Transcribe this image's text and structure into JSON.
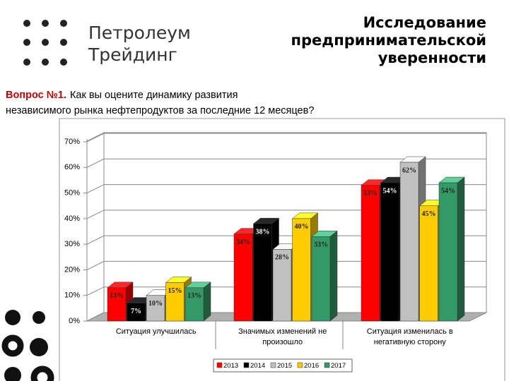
{
  "header": {
    "logo": [
      "Петролеум",
      "Трейдинг"
    ],
    "title_lines": [
      "Исследование",
      "предпринимательской",
      "уверенности"
    ]
  },
  "question": {
    "label": "Вопрос №1.",
    "lines": [
      "Как вы оцените динамику развития",
      "независимого рынка нефтепродуктов за последние 12 месяцев?"
    ]
  },
  "chart_data": {
    "type": "bar3d",
    "categories": [
      "Ситуация улучшилась",
      "Значимых изменений не произошло",
      "Ситуация изменилась в негативную сторону"
    ],
    "series": [
      {
        "name": "2013",
        "color": "#ff0000",
        "values": [
          13,
          34,
          53
        ],
        "value_labels": [
          "13%",
          "34%",
          "53%"
        ]
      },
      {
        "name": "2014",
        "color": "#000000",
        "values": [
          7,
          38,
          54
        ],
        "value_labels": [
          "7%",
          "38%",
          "54%"
        ]
      },
      {
        "name": "2015",
        "color": "#c0c0c0",
        "values": [
          10,
          28,
          62
        ],
        "value_labels": [
          "10%",
          "28%",
          "62%"
        ]
      },
      {
        "name": "2016",
        "color": "#ffcc00",
        "values": [
          15,
          40,
          45
        ],
        "value_labels": [
          "15%",
          "40%",
          "45%"
        ]
      },
      {
        "name": "2017",
        "color": "#339966",
        "values": [
          13,
          33,
          54
        ],
        "value_labels": [
          "13%",
          "33%",
          "54%"
        ]
      }
    ],
    "ylim": [
      0,
      70
    ],
    "yticks": [
      {
        "value": 0,
        "label": "0%"
      },
      {
        "value": 10,
        "label": "10%"
      },
      {
        "value": 20,
        "label": "20%"
      },
      {
        "value": 30,
        "label": "30%"
      },
      {
        "value": 40,
        "label": "40%"
      },
      {
        "value": 50,
        "label": "50%"
      },
      {
        "value": 60,
        "label": "60%"
      },
      {
        "value": 70,
        "label": "70%"
      }
    ],
    "grid": true,
    "legend": "bottom"
  }
}
